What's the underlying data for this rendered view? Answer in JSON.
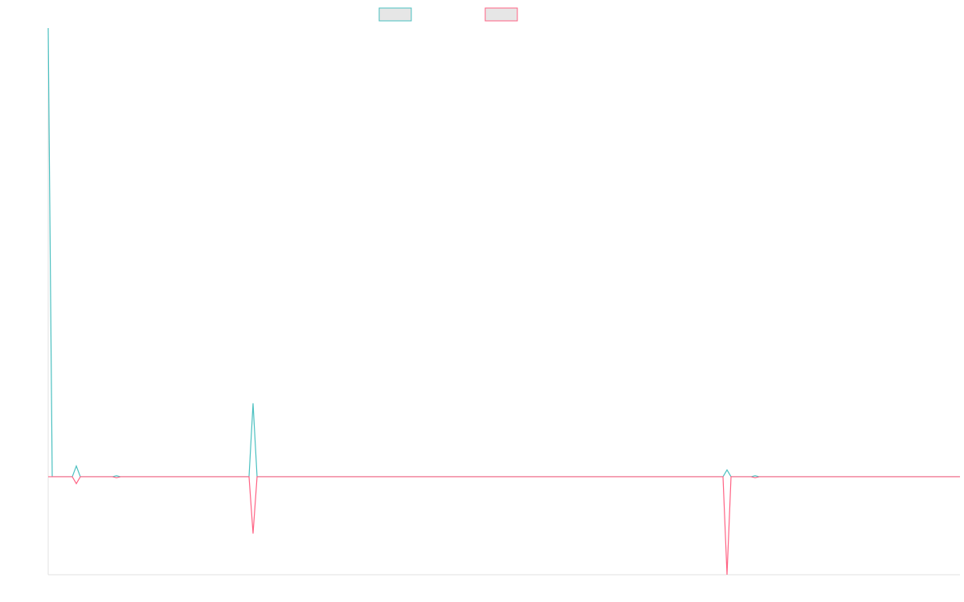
{
  "chart_data": {
    "type": "line",
    "x": [
      0,
      1,
      6,
      7,
      8,
      16,
      17,
      18,
      50,
      51,
      52,
      168,
      169,
      170,
      175,
      176,
      177,
      227
    ],
    "xlim": [
      0,
      227
    ],
    "ylim": [
      -1,
      4.58
    ],
    "grid": false,
    "legend": "top",
    "series": [
      {
        "color": "#4bc0c0",
        "values": [
          4.58,
          0,
          0,
          0.11,
          0,
          0,
          0.01,
          0,
          0,
          0.75,
          0,
          0,
          0.07,
          0,
          0,
          0.01,
          0,
          0
        ]
      },
      {
        "color": "#ff6384",
        "values": [
          0,
          0,
          0,
          -0.07,
          0,
          0,
          -0.01,
          0,
          0,
          -0.58,
          0,
          0,
          -1,
          0,
          0,
          -0.01,
          0,
          0
        ]
      }
    ]
  }
}
